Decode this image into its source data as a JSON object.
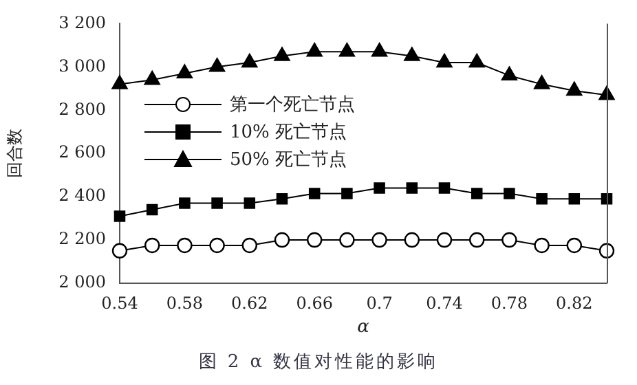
{
  "chart_data": {
    "type": "line",
    "xlabel": "α",
    "ylabel": "回合数",
    "categories": [
      "0.54",
      null,
      "0.58",
      null,
      "0.62",
      null,
      "0.66",
      null,
      "0.7",
      null,
      "0.74",
      null,
      "0.78",
      null,
      "0.82",
      null
    ],
    "ylim": [
      2000,
      3200
    ],
    "yticks": [
      {
        "value": 2000,
        "label": "2 000"
      },
      {
        "value": 2200,
        "label": "2 200"
      },
      {
        "value": 2400,
        "label": "2 400"
      },
      {
        "value": 2600,
        "label": "2 600"
      },
      {
        "value": 2800,
        "label": "2 800"
      },
      {
        "value": 3000,
        "label": "3 000"
      },
      {
        "value": 3200,
        "label": "3 200"
      }
    ],
    "grid": false,
    "legend": "center",
    "line_style": "solid",
    "series": [
      {
        "name": "第一个死亡节点",
        "color": "#000000",
        "marker": "circle",
        "values": [
          2150,
          2175,
          2175,
          2175,
          2175,
          2200,
          2200,
          2200,
          2200,
          2200,
          2200,
          2200,
          2200,
          2175,
          2175,
          2150
        ]
      },
      {
        "name": "10% 死亡节点",
        "color": "#000000",
        "marker": "square",
        "values": [
          2310,
          2340,
          2370,
          2370,
          2370,
          2390,
          2415,
          2415,
          2440,
          2440,
          2440,
          2415,
          2415,
          2390,
          2390,
          2390
        ]
      },
      {
        "name": "50% 死亡节点",
        "color": "#000000",
        "marker": "triangle",
        "values": [
          2920,
          2940,
          2970,
          3000,
          3020,
          3050,
          3070,
          3070,
          3070,
          3050,
          3020,
          3020,
          2960,
          2920,
          2890,
          2870
        ]
      }
    ],
    "annotations": [
      "图 2  α 数值对性能的影响"
    ]
  }
}
